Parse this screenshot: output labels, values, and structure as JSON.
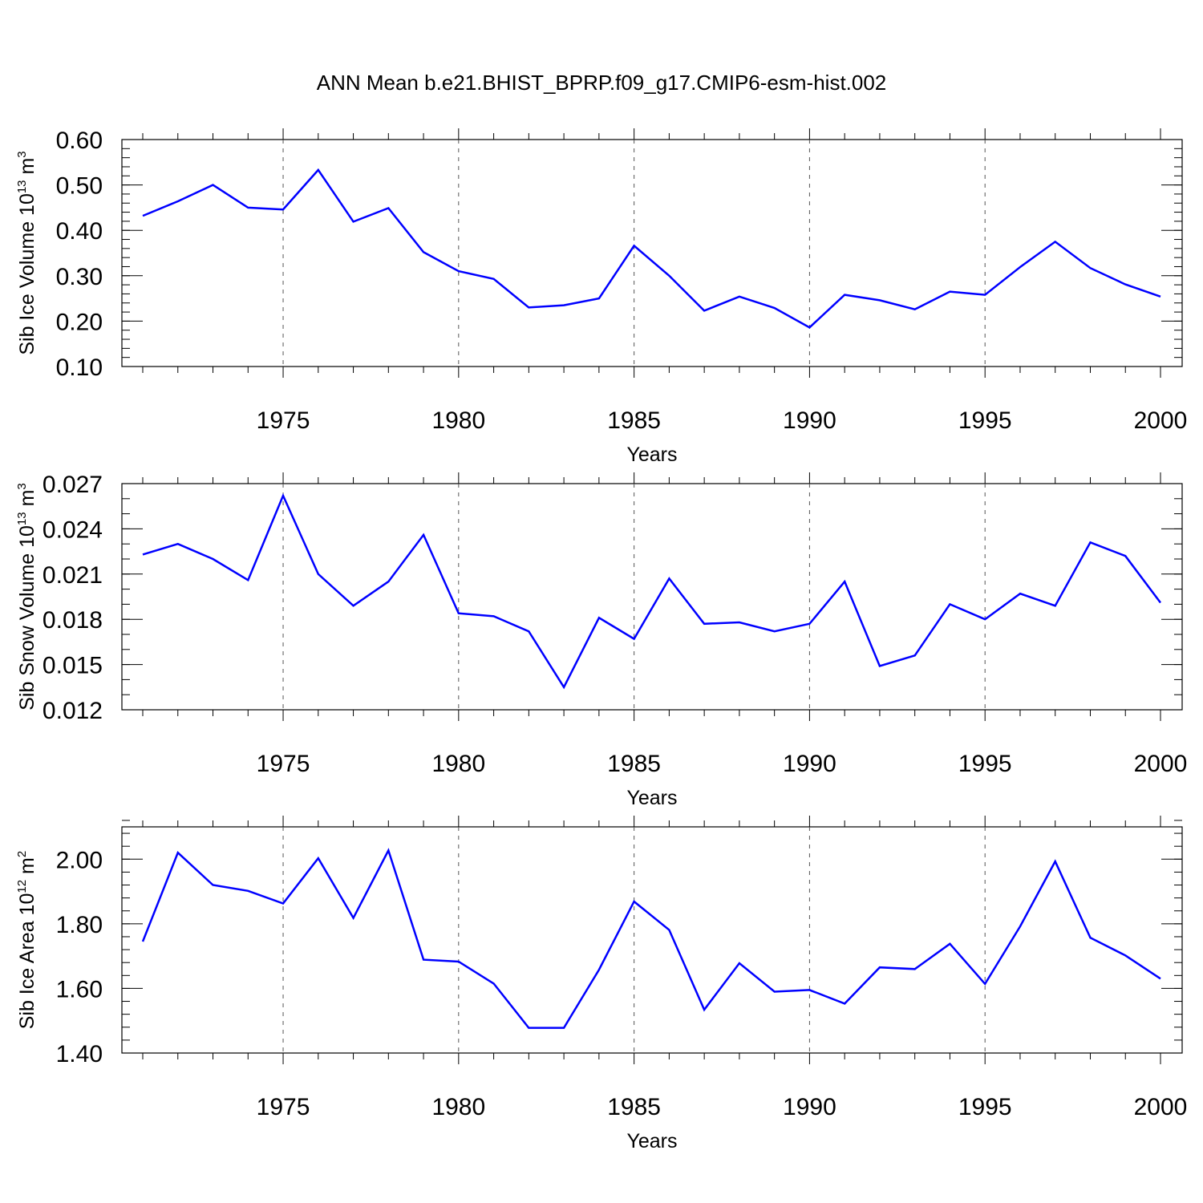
{
  "figure": {
    "title": "ANN Mean b.e21.BHIST_BPRP.f09_g17.CMIP6-esm-hist.002",
    "line_color": "#0000ff"
  },
  "chart_data": [
    {
      "type": "line",
      "ylabel_main": "Sib Ice Volume 10",
      "ylabel_exp": "13",
      "ylabel_unit": " m",
      "ylabel_unit_exp": "3",
      "xlabel": "Years",
      "xlim": [
        1971,
        2000
      ],
      "ylim": [
        0.1,
        0.6
      ],
      "y_ticks": [
        "0.10",
        "0.20",
        "0.30",
        "0.40",
        "0.50",
        "0.60"
      ],
      "y_minor_step": 0.02,
      "x_ticks": [
        "1975",
        "1980",
        "1985",
        "1990",
        "1995",
        "2000"
      ],
      "x_grid": true,
      "x": [
        1971,
        1972,
        1973,
        1974,
        1975,
        1976,
        1977,
        1978,
        1979,
        1980,
        1981,
        1982,
        1983,
        1984,
        1985,
        1986,
        1987,
        1988,
        1989,
        1990,
        1991,
        1992,
        1993,
        1994,
        1995,
        1996,
        1997,
        1998,
        1999,
        2000
      ],
      "values": [
        0.432,
        0.464,
        0.5,
        0.45,
        0.446,
        0.533,
        0.419,
        0.449,
        0.352,
        0.31,
        0.293,
        0.23,
        0.235,
        0.25,
        0.366,
        0.3,
        0.223,
        0.254,
        0.229,
        0.186,
        0.258,
        0.246,
        0.226,
        0.265,
        0.258,
        0.319,
        0.375,
        0.317,
        0.281,
        0.254
      ]
    },
    {
      "type": "line",
      "ylabel_main": "Sib Snow Volume 10",
      "ylabel_exp": "13",
      "ylabel_unit": " m",
      "ylabel_unit_exp": "3",
      "xlabel": "Years",
      "xlim": [
        1971,
        2000
      ],
      "ylim": [
        0.012,
        0.027
      ],
      "y_ticks": [
        "0.012",
        "0.015",
        "0.018",
        "0.021",
        "0.024",
        "0.027"
      ],
      "y_minor_step": 0.001,
      "x_ticks": [
        "1975",
        "1980",
        "1985",
        "1990",
        "1995",
        "2000"
      ],
      "x_grid": true,
      "x": [
        1971,
        1972,
        1973,
        1974,
        1975,
        1976,
        1977,
        1978,
        1979,
        1980,
        1981,
        1982,
        1983,
        1984,
        1985,
        1986,
        1987,
        1988,
        1989,
        1990,
        1991,
        1992,
        1993,
        1994,
        1995,
        1996,
        1997,
        1998,
        1999,
        2000
      ],
      "values": [
        0.0223,
        0.023,
        0.022,
        0.0206,
        0.0262,
        0.021,
        0.0189,
        0.0205,
        0.0236,
        0.0184,
        0.0182,
        0.0172,
        0.0135,
        0.0181,
        0.0167,
        0.0207,
        0.0177,
        0.0178,
        0.0172,
        0.0177,
        0.0205,
        0.0149,
        0.0156,
        0.019,
        0.018,
        0.0197,
        0.0189,
        0.0231,
        0.0222,
        0.0191
      ]
    },
    {
      "type": "line",
      "ylabel_main": "Sib Ice Area 10",
      "ylabel_exp": "12",
      "ylabel_unit": " m",
      "ylabel_unit_exp": "2",
      "xlabel": "Years",
      "xlim": [
        1971,
        2000
      ],
      "ylim": [
        1.4,
        2.1
      ],
      "y_ticks": [
        "1.40",
        "1.60",
        "1.80",
        "2.00"
      ],
      "y_minor_step": 0.04,
      "x_ticks": [
        "1975",
        "1980",
        "1985",
        "1990",
        "1995",
        "2000"
      ],
      "x_grid": true,
      "x": [
        1971,
        1972,
        1973,
        1974,
        1975,
        1976,
        1977,
        1978,
        1979,
        1980,
        1981,
        1982,
        1983,
        1984,
        1985,
        1986,
        1987,
        1988,
        1989,
        1990,
        1991,
        1992,
        1993,
        1994,
        1995,
        1996,
        1997,
        1998,
        1999,
        2000
      ],
      "values": [
        1.745,
        2.02,
        1.92,
        1.902,
        1.863,
        2.003,
        1.818,
        2.027,
        1.689,
        1.683,
        1.615,
        1.478,
        1.478,
        1.658,
        1.869,
        1.781,
        1.534,
        1.678,
        1.59,
        1.595,
        1.553,
        1.665,
        1.66,
        1.738,
        1.614,
        1.792,
        1.993,
        1.757,
        1.702,
        1.63
      ]
    }
  ]
}
